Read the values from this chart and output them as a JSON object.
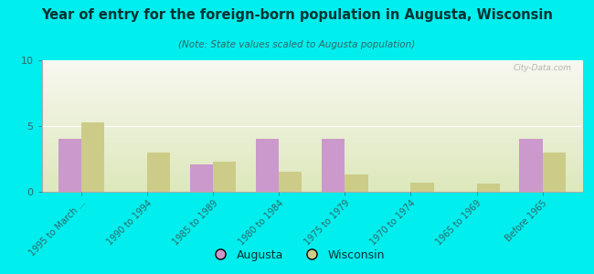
{
  "title": "Year of entry for the foreign-born population in Augusta, Wisconsin",
  "subtitle": "(Note: State values scaled to Augusta population)",
  "categories": [
    "1995 to March ...",
    "1990 to 1994",
    "1985 to 1989",
    "1980 to 1984",
    "1975 to 1979",
    "1970 to 1974",
    "1965 to 1969",
    "Before 1965"
  ],
  "augusta_values": [
    4.0,
    0.0,
    2.1,
    4.0,
    4.0,
    0.0,
    0.0,
    4.0
  ],
  "wisconsin_values": [
    5.3,
    3.0,
    2.3,
    1.5,
    1.3,
    0.7,
    0.6,
    3.0
  ],
  "augusta_color": "#cc99cc",
  "wisconsin_color": "#cccc88",
  "ylim": [
    0,
    10
  ],
  "yticks": [
    0,
    5,
    10
  ],
  "outer_bg": "#00eeee",
  "plot_bg_top": "#f8f8f0",
  "plot_bg_bottom": "#dde8bb",
  "bar_width": 0.35,
  "legend_augusta": "Augusta",
  "legend_wisconsin": "Wisconsin",
  "watermark": "City-Data.com",
  "title_color": "#003333",
  "subtitle_color": "#336666",
  "tick_color": "#336666",
  "spine_color": "#aaaaaa"
}
